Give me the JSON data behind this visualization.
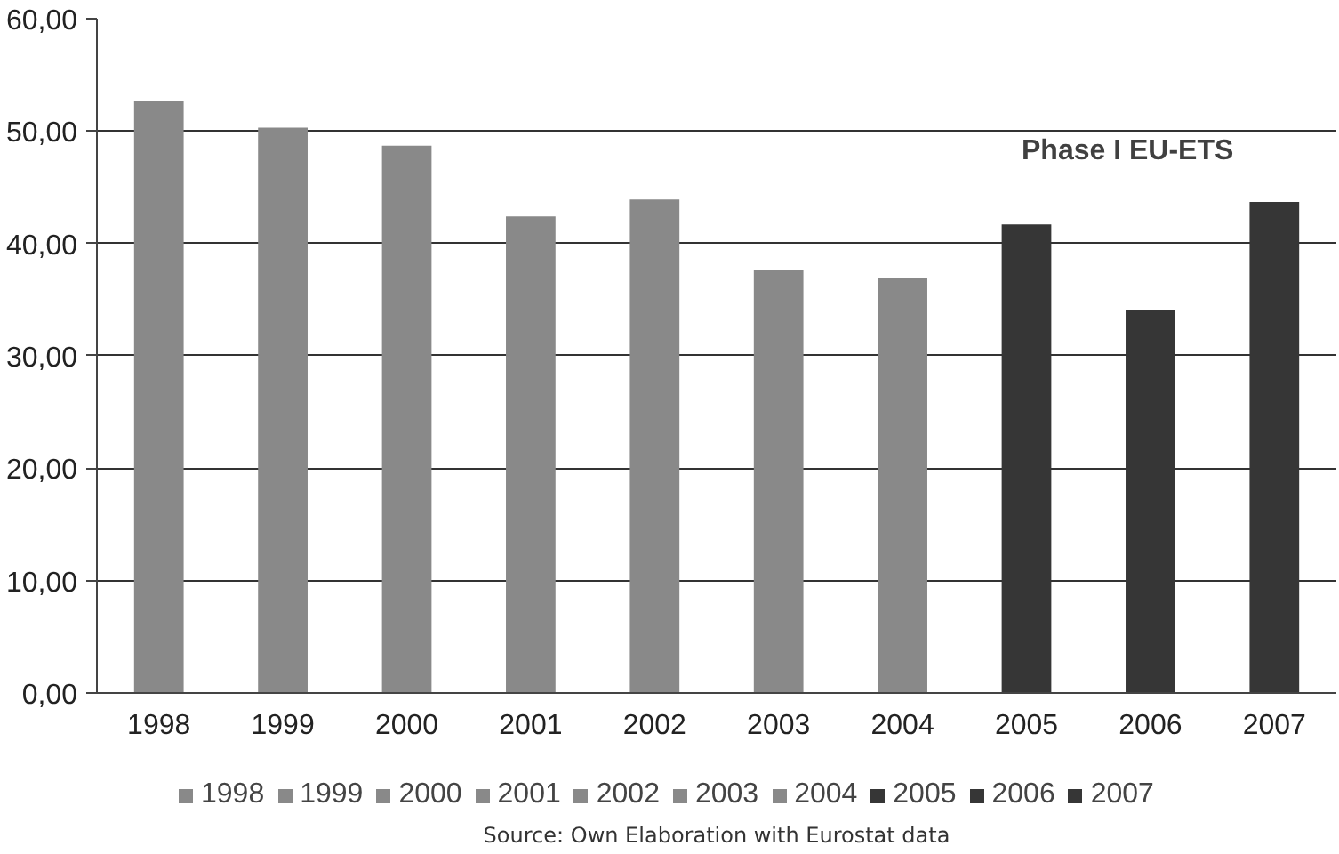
{
  "chart_data": {
    "type": "bar",
    "categories": [
      "1998",
      "1999",
      "2000",
      "2001",
      "2002",
      "2003",
      "2004",
      "2005",
      "2006",
      "2007"
    ],
    "series": [
      {
        "name": "1998",
        "color": "#898989",
        "values": [
          52.7,
          null,
          null,
          null,
          null,
          null,
          null,
          null,
          null,
          null
        ]
      },
      {
        "name": "1999",
        "color": "#898989",
        "values": [
          null,
          50.3,
          null,
          null,
          null,
          null,
          null,
          null,
          null,
          null
        ]
      },
      {
        "name": "2000",
        "color": "#898989",
        "values": [
          null,
          null,
          48.7,
          null,
          null,
          null,
          null,
          null,
          null,
          null
        ]
      },
      {
        "name": "2001",
        "color": "#898989",
        "values": [
          null,
          null,
          null,
          42.4,
          null,
          null,
          null,
          null,
          null,
          null
        ]
      },
      {
        "name": "2002",
        "color": "#898989",
        "values": [
          null,
          null,
          null,
          null,
          43.9,
          null,
          null,
          null,
          null,
          null
        ]
      },
      {
        "name": "2003",
        "color": "#898989",
        "values": [
          null,
          null,
          null,
          null,
          null,
          37.6,
          null,
          null,
          null,
          null
        ]
      },
      {
        "name": "2004",
        "color": "#898989",
        "values": [
          null,
          null,
          null,
          null,
          null,
          null,
          36.9,
          null,
          null,
          null
        ]
      },
      {
        "name": "2005",
        "color": "#363636",
        "values": [
          null,
          null,
          null,
          null,
          null,
          null,
          null,
          41.7,
          null,
          null
        ]
      },
      {
        "name": "2006",
        "color": "#363636",
        "values": [
          null,
          null,
          null,
          null,
          null,
          null,
          null,
          null,
          34.1,
          null
        ]
      },
      {
        "name": "2007",
        "color": "#363636",
        "values": [
          null,
          null,
          null,
          null,
          null,
          null,
          null,
          null,
          null,
          43.7
        ]
      }
    ],
    "ylim": [
      0,
      60
    ],
    "yticks": [
      {
        "value": 0,
        "label": "0,00"
      },
      {
        "value": 10,
        "label": "10,00"
      },
      {
        "value": 20,
        "label": "20,00"
      },
      {
        "value": 30,
        "label": "30,00"
      },
      {
        "value": 40,
        "label": "40,00"
      },
      {
        "value": 50,
        "label": "50,00"
      },
      {
        "value": 60,
        "label": "60,00"
      }
    ],
    "grid": "y",
    "legend": "bottom",
    "annotations": [
      "Phase I EU-ETS",
      "Source: Own Elaboration with Eurostat data"
    ]
  }
}
